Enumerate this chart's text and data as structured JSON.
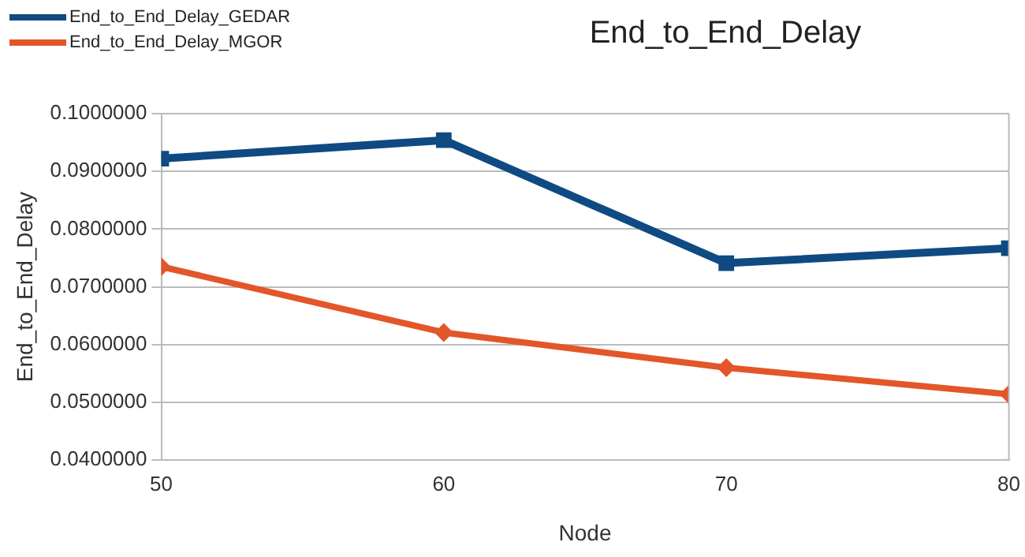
{
  "chart_data": {
    "type": "line",
    "title": "End_to_End_Delay",
    "xlabel": "Node",
    "ylabel": "End_to_End_Delay",
    "x": [
      50,
      60,
      70,
      80
    ],
    "series": [
      {
        "name": "End_to_End_Delay_GEDAR",
        "color": "#0f4a82",
        "marker": "square",
        "values": [
          0.0922,
          0.0954,
          0.0741,
          0.0767
        ]
      },
      {
        "name": "End_to_End_Delay_MGOR",
        "color": "#e2562a",
        "marker": "diamond",
        "values": [
          0.0735,
          0.0621,
          0.056,
          0.0514
        ]
      }
    ],
    "xlim": [
      50,
      80
    ],
    "xticks": [
      50,
      60,
      70,
      80
    ],
    "ylim": [
      0.04,
      0.1
    ],
    "yticks": [
      {
        "value": 0.04,
        "label": "0.0400000"
      },
      {
        "value": 0.05,
        "label": "0.0500000"
      },
      {
        "value": 0.06,
        "label": "0.0600000"
      },
      {
        "value": 0.07,
        "label": "0.0700000"
      },
      {
        "value": 0.08,
        "label": "0.0800000"
      },
      {
        "value": 0.09,
        "label": "0.0900000"
      },
      {
        "value": 0.1,
        "label": "0.1000000"
      }
    ],
    "grid": "y",
    "legend": "top left"
  }
}
